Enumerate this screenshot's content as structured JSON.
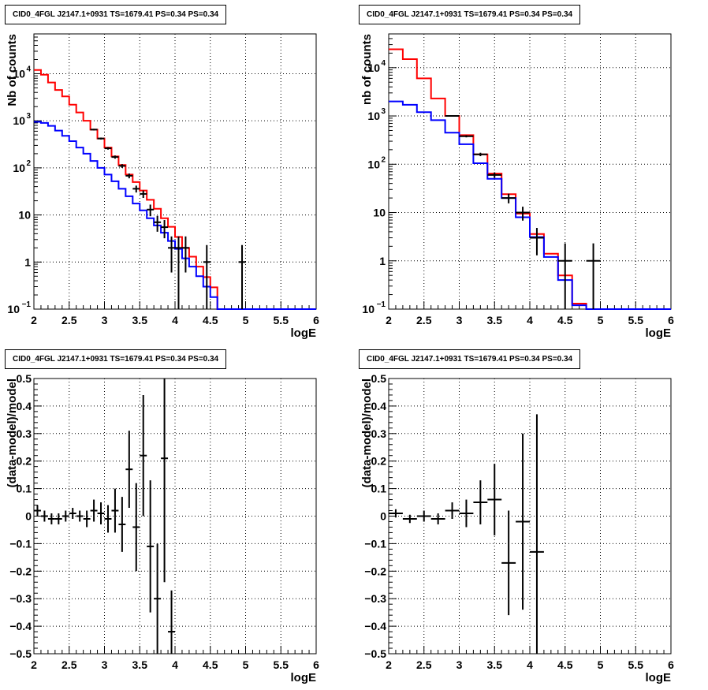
{
  "chart_data": [
    {
      "type": "line",
      "title": "CID0_4FGL J2147.1+0931 TS=1679.41 PS=0.34 PS=0.34",
      "xlabel": "logE",
      "ylabel": "Nb of counts",
      "xlim": [
        2,
        6
      ],
      "ylim": [
        0.1,
        70000
      ],
      "log_y": true,
      "grid": true,
      "x_ticks": [
        "2",
        "2.5",
        "3",
        "3.5",
        "4",
        "4.5",
        "5",
        "5.5",
        "6"
      ],
      "y_ticks": [
        {
          "value": 0.1,
          "label": "10",
          "exp": "−1"
        },
        {
          "value": 1,
          "label": "1",
          "exp": ""
        },
        {
          "value": 10,
          "label": "10",
          "exp": ""
        },
        {
          "value": 100,
          "label": "10",
          "exp": "2"
        },
        {
          "value": 1000,
          "label": "10",
          "exp": "3"
        },
        {
          "value": 10000,
          "label": "10",
          "exp": "4"
        }
      ],
      "bin_width": 0.1,
      "series": [
        {
          "color": "#ff0000",
          "kind": "histogram",
          "x": [
            2.0,
            2.1,
            2.2,
            2.3,
            2.4,
            2.5,
            2.6,
            2.7,
            2.8,
            2.9,
            3.0,
            3.1,
            3.2,
            3.3,
            3.4,
            3.5,
            3.6,
            3.7,
            3.8,
            3.9,
            4.0,
            4.1,
            4.2,
            4.3,
            4.4,
            4.5,
            4.6,
            4.7,
            4.8,
            4.9,
            5.0,
            5.1,
            5.2,
            5.3,
            5.4,
            5.5,
            5.6,
            5.7,
            5.8,
            5.9
          ],
          "values": [
            12000,
            9500,
            6500,
            4500,
            3300,
            2200,
            1500,
            1000,
            650,
            420,
            270,
            175,
            115,
            72,
            50,
            33,
            21,
            13.5,
            8.5,
            5.6,
            3.4,
            2.0,
            1.3,
            0.8,
            0.48,
            0.29,
            0.1,
            0.1,
            0.1,
            0.1,
            0.1,
            0.1,
            0.1,
            0.1,
            0.1,
            0.1,
            0.1,
            0.1,
            0.1,
            0.1
          ]
        },
        {
          "color": "#0000ff",
          "kind": "histogram",
          "x": [
            2.0,
            2.1,
            2.2,
            2.3,
            2.4,
            2.5,
            2.6,
            2.7,
            2.8,
            2.9,
            3.0,
            3.1,
            3.2,
            3.3,
            3.4,
            3.5,
            3.6,
            3.7,
            3.8,
            3.9,
            4.0,
            4.1,
            4.2,
            4.3,
            4.4,
            4.5,
            4.6,
            4.7,
            4.8,
            4.9,
            5.0,
            5.1,
            5.2,
            5.3,
            5.4,
            5.5,
            5.6,
            5.7,
            5.8,
            5.9
          ],
          "values": [
            950,
            900,
            780,
            620,
            480,
            370,
            270,
            200,
            140,
            100,
            72,
            52,
            36,
            25,
            17.5,
            12.5,
            8.5,
            6.0,
            4.2,
            2.8,
            1.9,
            1.2,
            0.8,
            0.5,
            0.3,
            0.18,
            0.1,
            0.1,
            0.1,
            0.1,
            0.1,
            0.1,
            0.1,
            0.1,
            0.1,
            0.1,
            0.1,
            0.1,
            0.1,
            0.1
          ]
        },
        {
          "color": "#000000",
          "kind": "errorbars",
          "x": [
            2.85,
            2.95,
            3.05,
            3.15,
            3.25,
            3.35,
            3.45,
            3.55,
            3.65,
            3.75,
            3.85,
            3.95,
            4.05,
            4.15,
            4.45,
            4.95
          ],
          "values": [
            650,
            420,
            260,
            170,
            110,
            68,
            36,
            28,
            13,
            7,
            5.5,
            2,
            2,
            2,
            1,
            1
          ],
          "err_low": [
            25,
            20,
            16,
            13,
            10,
            8,
            6,
            5,
            3.6,
            2.6,
            2.3,
            1.4,
            1.9,
            1.4,
            0.95,
            0.95
          ],
          "err_high": [
            25,
            20,
            16,
            13,
            10,
            8,
            6,
            5,
            3.6,
            2.6,
            2.3,
            1.5,
            1.5,
            1.5,
            1.3,
            1.3
          ]
        }
      ]
    },
    {
      "type": "line",
      "title": "CID0_4FGL J2147.1+0931 TS=1679.41 PS=0.34 PS=0.34",
      "xlabel": "logE",
      "ylabel": "nb of counts",
      "xlim": [
        2,
        6
      ],
      "ylim": [
        0.1,
        50000
      ],
      "log_y": true,
      "grid": true,
      "x_ticks": [
        "2",
        "2.5",
        "3",
        "3.5",
        "4",
        "4.5",
        "5",
        "5.5",
        "6"
      ],
      "y_ticks": [
        {
          "value": 0.1,
          "label": "10",
          "exp": "−1"
        },
        {
          "value": 1,
          "label": "1",
          "exp": ""
        },
        {
          "value": 10,
          "label": "10",
          "exp": ""
        },
        {
          "value": 100,
          "label": "10",
          "exp": "2"
        },
        {
          "value": 1000,
          "label": "10",
          "exp": "3"
        },
        {
          "value": 10000,
          "label": "10",
          "exp": "4"
        }
      ],
      "bin_width": 0.2,
      "series": [
        {
          "color": "#ff0000",
          "kind": "histogram",
          "x": [
            2.0,
            2.2,
            2.4,
            2.6,
            2.8,
            3.0,
            3.2,
            3.4,
            3.6,
            3.8,
            4.0,
            4.2,
            4.4,
            4.6,
            4.8,
            5.0,
            5.2,
            5.4,
            5.6,
            5.8
          ],
          "values": [
            24000,
            15000,
            6000,
            2300,
            1000,
            400,
            160,
            64,
            24,
            9.5,
            3.6,
            1.4,
            0.5,
            0.13,
            0.1,
            0.1,
            0.1,
            0.1,
            0.1,
            0.1
          ]
        },
        {
          "color": "#0000ff",
          "kind": "histogram",
          "x": [
            2.0,
            2.2,
            2.4,
            2.6,
            2.8,
            3.0,
            3.2,
            3.4,
            3.6,
            3.8,
            4.0,
            4.2,
            4.4,
            4.6,
            4.8,
            5.0,
            5.2,
            5.4,
            5.6,
            5.8
          ],
          "values": [
            2000,
            1700,
            1200,
            820,
            450,
            260,
            105,
            50,
            20,
            8,
            3.1,
            1.2,
            0.4,
            0.12,
            0.1,
            0.1,
            0.1,
            0.1,
            0.1,
            0.1
          ]
        },
        {
          "color": "#000000",
          "kind": "errorbars",
          "x": [
            2.9,
            3.1,
            3.3,
            3.5,
            3.7,
            3.9,
            4.1,
            4.5,
            4.9
          ],
          "values": [
            1000,
            380,
            160,
            60,
            20,
            10,
            3,
            1,
            1
          ],
          "err_low": [
            32,
            20,
            13,
            8,
            4.5,
            3.2,
            1.7,
            0.95,
            0.95
          ],
          "err_high": [
            32,
            20,
            13,
            8,
            4.5,
            3.2,
            1.8,
            1.3,
            1.3
          ]
        }
      ]
    },
    {
      "type": "scatter",
      "title": "CID0_4FGL J2147.1+0931 TS=1679.41 PS=0.34 PS=0.34",
      "xlabel": "logE",
      "ylabel": "(data-model)/model",
      "xlim": [
        2,
        6
      ],
      "ylim": [
        -0.5,
        0.5
      ],
      "grid": true,
      "x_ticks": [
        "2",
        "2.5",
        "3",
        "3.5",
        "4",
        "4.5",
        "5",
        "5.5",
        "6"
      ],
      "y_ticks": [
        "−0.5",
        "−0.4",
        "−0.3",
        "−0.2",
        "−0.1",
        "0",
        "0.1",
        "0.2",
        "0.3",
        "0.4",
        "0.5"
      ],
      "bin_width": 0.1,
      "series": [
        {
          "color": "#000000",
          "kind": "errorbars",
          "x": [
            2.05,
            2.15,
            2.25,
            2.35,
            2.45,
            2.55,
            2.65,
            2.75,
            2.85,
            2.95,
            3.05,
            3.15,
            3.25,
            3.35,
            3.45,
            3.55,
            3.65,
            3.75,
            3.85,
            3.95
          ],
          "values": [
            0.02,
            0.0,
            -0.01,
            -0.01,
            0.0,
            0.01,
            0.0,
            -0.01,
            0.02,
            0.01,
            -0.01,
            0.02,
            -0.03,
            0.17,
            -0.04,
            0.22,
            -0.11,
            -0.3,
            0.21,
            -0.42
          ],
          "errors": [
            0.02,
            0.02,
            0.02,
            0.02,
            0.02,
            0.02,
            0.02,
            0.03,
            0.04,
            0.04,
            0.05,
            0.08,
            0.1,
            0.14,
            0.16,
            0.22,
            0.24,
            0.2,
            0.45,
            0.15
          ]
        }
      ]
    },
    {
      "type": "scatter",
      "title": "CID0_4FGL J2147.1+0931 TS=1679.41 PS=0.34 PS=0.34",
      "xlabel": "logE",
      "ylabel": "(data-model)/model",
      "xlim": [
        2,
        6
      ],
      "ylim": [
        -0.5,
        0.5
      ],
      "grid": true,
      "x_ticks": [
        "2",
        "2.5",
        "3",
        "3.5",
        "4",
        "4.5",
        "5",
        "5.5",
        "6"
      ],
      "y_ticks": [
        "−0.5",
        "−0.4",
        "−0.3",
        "−0.2",
        "−0.1",
        "0",
        "0.1",
        "0.2",
        "0.3",
        "0.4",
        "0.5"
      ],
      "bin_width": 0.2,
      "series": [
        {
          "color": "#000000",
          "kind": "errorbars",
          "x": [
            2.1,
            2.3,
            2.5,
            2.7,
            2.9,
            3.1,
            3.3,
            3.5,
            3.7,
            3.9,
            4.1
          ],
          "values": [
            0.01,
            -0.01,
            0.0,
            -0.01,
            0.02,
            0.01,
            0.05,
            0.06,
            -0.17,
            -0.02,
            -0.13
          ],
          "errors": [
            0.015,
            0.015,
            0.02,
            0.02,
            0.03,
            0.05,
            0.08,
            0.13,
            0.19,
            0.32,
            0.5
          ]
        }
      ]
    }
  ]
}
